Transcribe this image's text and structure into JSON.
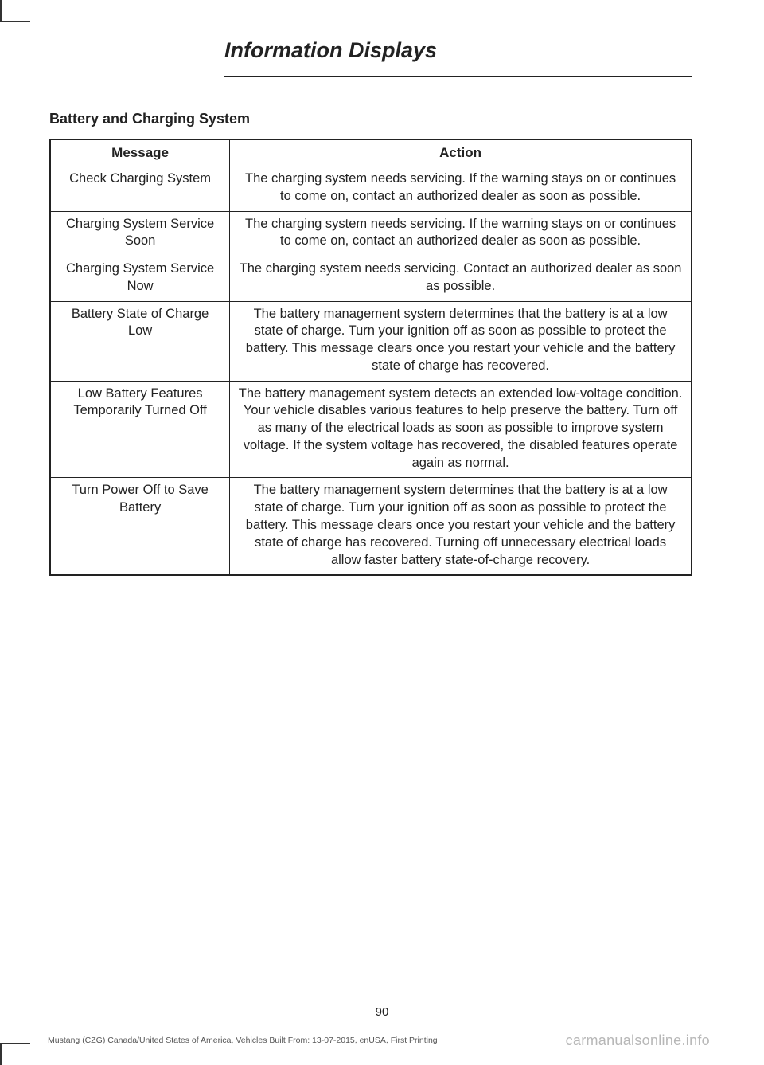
{
  "page": {
    "chapter_title": "Information Displays",
    "section_title": "Battery and Charging System",
    "page_number": "90",
    "footer_left": "Mustang (CZG) Canada/United States of America, Vehicles Built From: 13-07-2015, enUSA, First Printing",
    "footer_right": "carmanualsonline.info"
  },
  "table": {
    "headers": {
      "col1": "Message",
      "col2": "Action"
    },
    "rows": [
      {
        "message": "Check Charging System",
        "action": "The charging system needs servicing. If the warning stays on or continues to come on, contact an authorized dealer as soon as possible."
      },
      {
        "message": "Charging System Service Soon",
        "action": "The charging system needs servicing. If the warning stays on or continues to come on, contact an authorized dealer as soon as possible."
      },
      {
        "message": "Charging System Service Now",
        "action": "The charging system needs servicing. Contact an authorized dealer as soon as possible."
      },
      {
        "message": "Battery State of Charge Low",
        "action": "The battery management system determines that the battery is at a low state of charge. Turn your ignition off as soon as possible to protect the battery. This message clears once you restart your vehicle and the battery state of charge has recovered."
      },
      {
        "message": "Low Battery Features Temporarily Turned Off",
        "action": "The battery management system detects an extended low-voltage condition. Your vehicle disables various features to help preserve the battery. Turn off as many of the electrical loads as soon as possible to improve system voltage. If the system voltage has recovered, the disabled features operate again as normal."
      },
      {
        "message": "Turn Power Off to Save Battery",
        "action": "The battery management system determines that the battery is at a low state of charge. Turn your ignition off as soon as possible to protect the battery. This message clears once you restart your vehicle and the battery state of charge has recovered. Turning off unnecessary electrical loads allow faster battery state-of-charge recovery."
      }
    ]
  }
}
